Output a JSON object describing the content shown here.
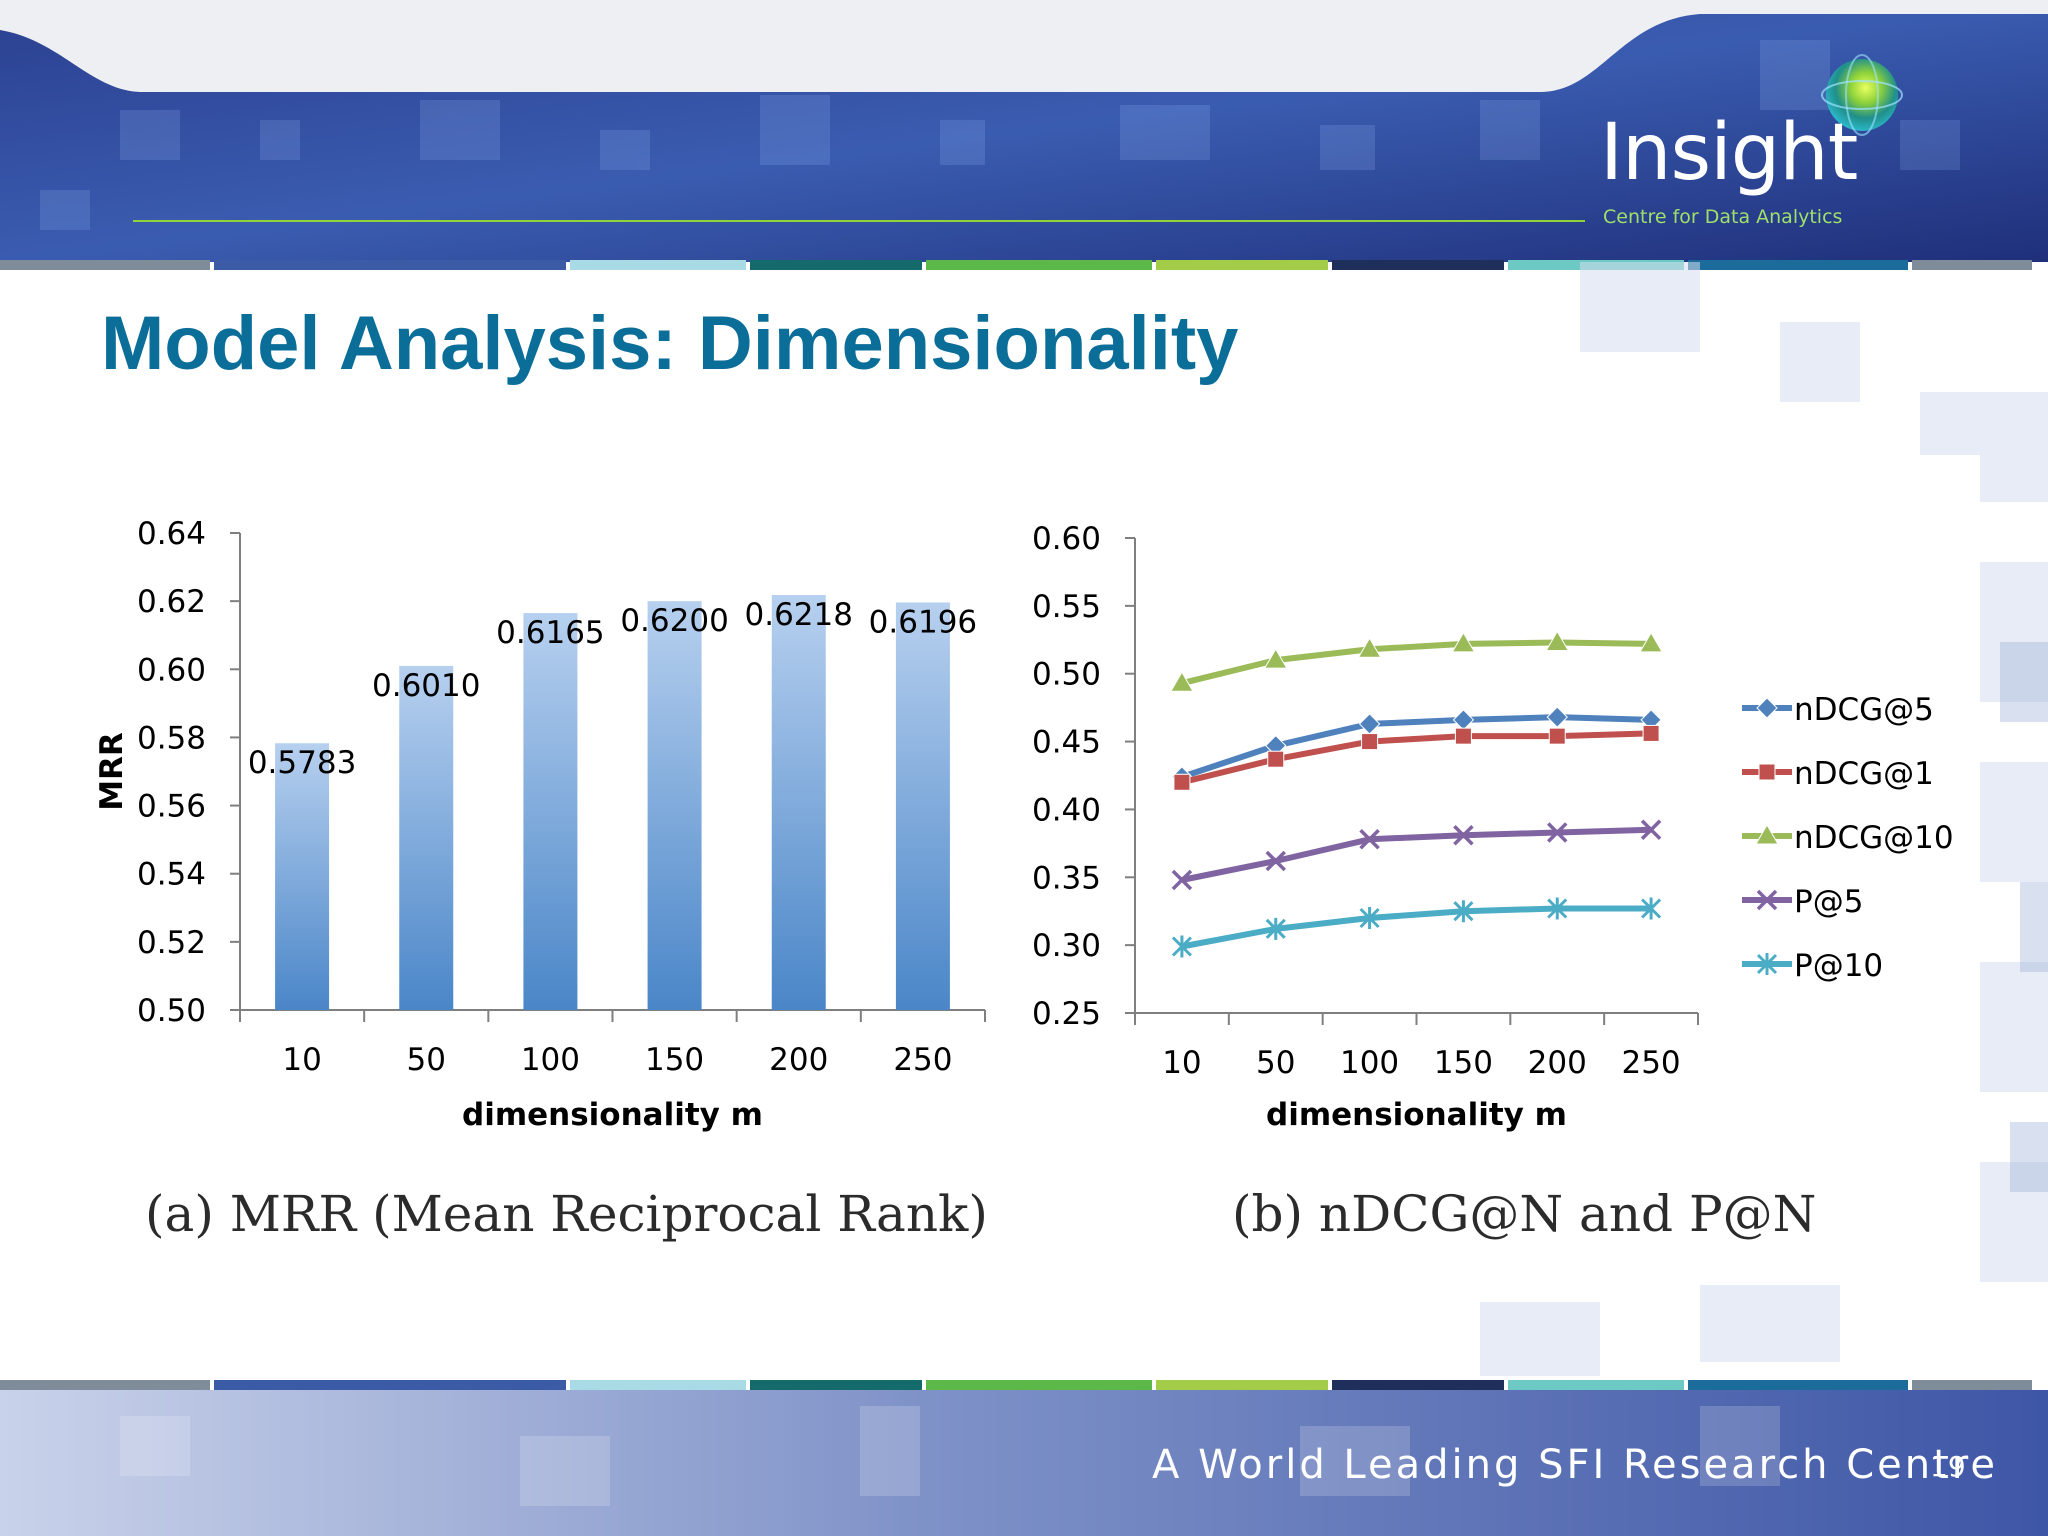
{
  "slide": {
    "title": "Model Analysis: Dimensionality",
    "page_number": "19",
    "footer_text": "A World Leading SFI Research Centre"
  },
  "logo": {
    "wordmark": "Insight",
    "subtitle": "Centre for Data Analytics",
    "icon": "globe-icon"
  },
  "colors": {
    "title": "#0b6e99",
    "bar": "#5b9bd5",
    "stripes": [
      "#7f8c99",
      "#3b5ba6",
      "#a9dbe6",
      "#156b6b",
      "#5cb848",
      "#a3cc49",
      "#1f2f5c",
      "#6cc9c4",
      "#1b6c9a",
      "#7f8c99"
    ]
  },
  "captions": {
    "a": "(a) MRR (Mean Reciprocal Rank)",
    "b": "(b) nDCG@N and P@N"
  },
  "chart_data": [
    {
      "type": "bar",
      "categories": [
        "10",
        "50",
        "100",
        "150",
        "200",
        "250"
      ],
      "values": [
        0.5783,
        0.601,
        0.6165,
        0.62,
        0.6218,
        0.6196
      ],
      "data_labels": [
        "0.5783",
        "0.6010",
        "0.6165",
        "0.6200",
        "0.6218",
        "0.6196"
      ],
      "ylabel": "MRR",
      "xlabel": "dimensionality m",
      "ylim": [
        0.5,
        0.64
      ],
      "yticks": [
        "0.64",
        "0.62",
        "0.60",
        "0.58",
        "0.56",
        "0.54",
        "0.52",
        "0.50"
      ],
      "grid": false
    },
    {
      "type": "line",
      "categories": [
        "10",
        "50",
        "100",
        "150",
        "200",
        "250"
      ],
      "xlabel": "dimensionality m",
      "ylim": [
        0.25,
        0.6
      ],
      "yticks": [
        "0.60",
        "0.55",
        "0.50",
        "0.45",
        "0.40",
        "0.35",
        "0.30",
        "0.25"
      ],
      "grid": false,
      "legend_position": "right",
      "series": [
        {
          "name": "nDCG@5",
          "values": [
            0.424,
            0.447,
            0.463,
            0.466,
            0.468,
            0.466
          ],
          "color": "#4f81bd",
          "marker": "diamond"
        },
        {
          "name": "nDCG@1",
          "values": [
            0.42,
            0.437,
            0.45,
            0.454,
            0.454,
            0.456
          ],
          "color": "#c0504d",
          "marker": "square"
        },
        {
          "name": "nDCG@10",
          "values": [
            0.493,
            0.51,
            0.518,
            0.522,
            0.523,
            0.522
          ],
          "color": "#9bbb59",
          "marker": "triangle"
        },
        {
          "name": "P@5",
          "values": [
            0.348,
            0.362,
            0.378,
            0.381,
            0.383,
            0.385
          ],
          "color": "#8064a2",
          "marker": "x"
        },
        {
          "name": "P@10",
          "values": [
            0.299,
            0.312,
            0.32,
            0.325,
            0.327,
            0.327
          ],
          "color": "#4bacc6",
          "marker": "star"
        }
      ]
    }
  ]
}
